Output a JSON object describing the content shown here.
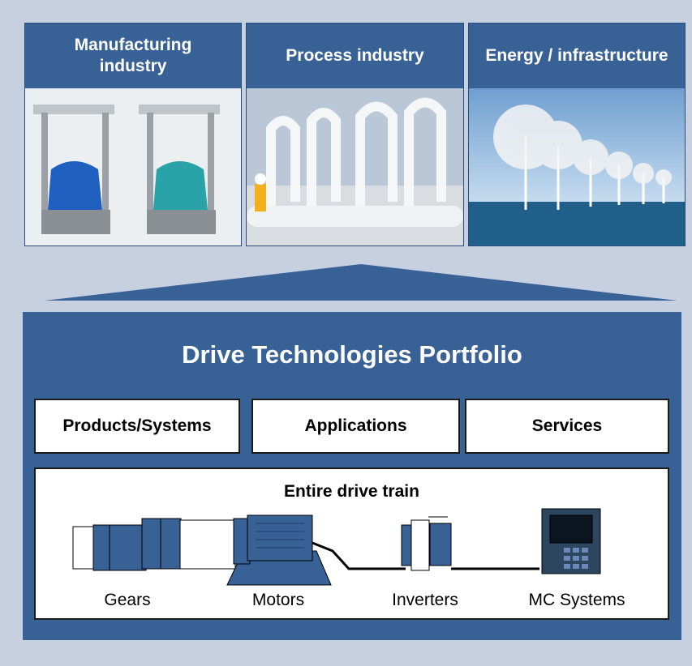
{
  "sectors": [
    {
      "label": "Manufacturing industry"
    },
    {
      "label": "Process industry"
    },
    {
      "label": "Energy / infrastructure"
    }
  ],
  "portfolio": {
    "title": "Drive Technologies Portfolio",
    "offerings": [
      "Products/Systems",
      "Applications",
      "Services"
    ],
    "drive_train": {
      "title": "Entire drive train",
      "components": [
        "Gears",
        "Motors",
        "Inverters",
        "MC Systems"
      ]
    }
  }
}
